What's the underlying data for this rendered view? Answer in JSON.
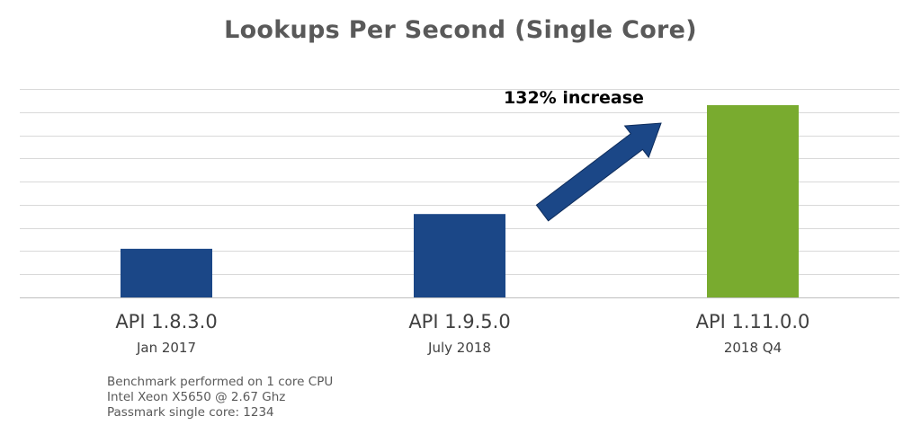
{
  "chart_data": {
    "type": "bar",
    "title": "Lookups Per Second (Single Core)",
    "categories": [
      "API 1.8.3.0",
      "API 1.9.5.0",
      "API 1.11.0.0"
    ],
    "subcategories": [
      "Jan 2017",
      "July 2018",
      "2018 Q4"
    ],
    "values": [
      2.1,
      3.6,
      8.3
    ],
    "bar_colors": [
      "#1b4787",
      "#1b4787",
      "#79ab2f"
    ],
    "ylim": [
      0,
      9
    ],
    "gridlines": true,
    "y_tick_labels_shown": false,
    "annotation": {
      "text": "132% increase",
      "arrow_color": "#1b4787"
    }
  },
  "footnote": [
    "Benchmark performed on 1 core CPU",
    "Intel Xeon X5650 @ 2.67 Ghz",
    "Passmark single core: 1234"
  ]
}
